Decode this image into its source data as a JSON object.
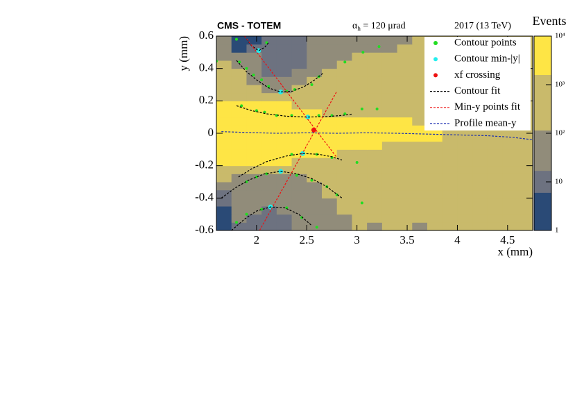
{
  "chart_data": {
    "type": "heatmap",
    "header_left": "CMS - TOTEM",
    "annotation": {
      "symbol": "α",
      "sub": "h",
      "text": " = 120  μrad"
    },
    "header_right": "2017 (13 TeV)",
    "x_label": "x (mm)",
    "y_label": "y (mm)",
    "z_label": "Events",
    "xlim": [
      1.6,
      4.75
    ],
    "ylim": [
      -0.6,
      0.6
    ],
    "xticks": [
      2,
      2.5,
      3,
      3.5,
      4,
      4.5
    ],
    "yticks": [
      -0.6,
      -0.4,
      -0.2,
      0,
      0.2,
      0.4,
      0.6
    ],
    "zlim": [
      1,
      10000
    ],
    "zlog": true,
    "zticks": [
      1,
      10,
      {
        "value": 100,
        "label": "10²"
      },
      {
        "value": 1000,
        "label": "10³"
      },
      {
        "value": 10000,
        "label": "10⁴"
      }
    ],
    "z_levels": [
      1,
      6,
      17,
      115,
      1600,
      10000
    ],
    "level_colors": [
      "#2a4a76",
      "#6d7280",
      "#918c7a",
      "#c9ba6b",
      "#fee545"
    ],
    "x_bins": [
      1.6,
      1.75,
      1.9,
      2.05,
      2.2,
      2.35,
      2.5,
      2.65,
      2.8,
      2.95,
      3.1,
      3.25,
      3.4,
      3.55,
      3.7,
      3.85,
      4.0,
      4.15,
      4.3,
      4.45,
      4.6,
      4.75
    ],
    "y_bins": [
      -0.6,
      -0.55,
      -0.5,
      -0.45,
      -0.4,
      -0.35,
      -0.3,
      -0.25,
      -0.2,
      -0.15,
      -0.1,
      -0.05,
      0,
      0.05,
      0.1,
      0.15,
      0.2,
      0.25,
      0.3,
      0.35,
      0.4,
      0.45,
      0.5,
      0.55,
      0.6
    ],
    "z": [
      [
        3,
        10,
        10,
        10,
        10,
        50,
        50,
        50,
        50,
        500,
        50,
        500,
        500,
        50,
        500,
        500,
        500,
        500,
        500,
        500,
        500
      ],
      [
        3,
        50,
        10,
        10,
        10,
        50,
        50,
        50,
        50,
        500,
        500,
        500,
        500,
        500,
        500,
        500,
        500,
        500,
        500,
        500,
        500
      ],
      [
        3,
        50,
        50,
        10,
        50,
        50,
        50,
        50,
        500,
        500,
        500,
        500,
        500,
        500,
        500,
        500,
        500,
        500,
        500,
        500,
        500
      ],
      [
        10,
        50,
        50,
        50,
        50,
        50,
        50,
        50,
        500,
        500,
        500,
        500,
        500,
        500,
        500,
        500,
        500,
        500,
        500,
        500,
        500
      ],
      [
        10,
        50,
        50,
        50,
        50,
        50,
        50,
        500,
        500,
        500,
        500,
        500,
        500,
        500,
        500,
        500,
        500,
        500,
        500,
        500,
        500
      ],
      [
        50,
        50,
        50,
        50,
        50,
        50,
        50,
        500,
        500,
        500,
        500,
        500,
        500,
        500,
        500,
        500,
        500,
        500,
        500,
        500,
        500
      ],
      [
        500,
        50,
        50,
        50,
        50,
        50,
        500,
        500,
        500,
        500,
        500,
        500,
        500,
        500,
        500,
        500,
        500,
        500,
        500,
        500,
        500
      ],
      [
        500,
        500,
        500,
        500,
        500,
        500,
        500,
        500,
        500,
        500,
        500,
        500,
        500,
        500,
        500,
        500,
        500,
        500,
        500,
        500,
        500
      ],
      [
        3000,
        3000,
        3000,
        3000,
        3000,
        500,
        500,
        500,
        500,
        500,
        500,
        500,
        500,
        500,
        500,
        500,
        500,
        500,
        500,
        500,
        500
      ],
      [
        3000,
        3000,
        3000,
        3000,
        3000,
        3000,
        3000,
        3000,
        500,
        500,
        500,
        500,
        500,
        500,
        500,
        500,
        500,
        500,
        500,
        500,
        500
      ],
      [
        3000,
        3000,
        3000,
        3000,
        3000,
        3000,
        3000,
        3000,
        3000,
        3000,
        3000,
        500,
        500,
        500,
        500,
        500,
        500,
        500,
        500,
        500,
        500
      ],
      [
        3000,
        3000,
        3000,
        3000,
        3000,
        3000,
        3000,
        3000,
        3000,
        3000,
        3000,
        3000,
        3000,
        3000,
        3000,
        500,
        500,
        500,
        500,
        500,
        500
      ],
      [
        3000,
        3000,
        3000,
        3000,
        3000,
        3000,
        3000,
        3000,
        3000,
        3000,
        3000,
        3000,
        3000,
        3000,
        3000,
        500,
        500,
        500,
        500,
        500,
        500
      ],
      [
        3000,
        3000,
        3000,
        3000,
        3000,
        3000,
        3000,
        3000,
        3000,
        3000,
        3000,
        3000,
        3000,
        500,
        500,
        500,
        500,
        500,
        500,
        500,
        500
      ],
      [
        3000,
        3000,
        3000,
        3000,
        3000,
        3000,
        3000,
        500,
        500,
        500,
        500,
        500,
        500,
        500,
        500,
        500,
        500,
        500,
        500,
        500,
        500
      ],
      [
        3000,
        3000,
        3000,
        3000,
        3000,
        500,
        500,
        500,
        500,
        500,
        500,
        500,
        500,
        500,
        500,
        500,
        500,
        500,
        500,
        500,
        500
      ],
      [
        500,
        500,
        500,
        500,
        500,
        500,
        500,
        500,
        500,
        500,
        500,
        500,
        500,
        500,
        500,
        500,
        500,
        500,
        500,
        500,
        500
      ],
      [
        500,
        500,
        500,
        50,
        50,
        500,
        500,
        500,
        500,
        500,
        500,
        500,
        500,
        500,
        500,
        500,
        500,
        500,
        500,
        500,
        500
      ],
      [
        500,
        500,
        50,
        50,
        50,
        50,
        500,
        500,
        500,
        500,
        500,
        500,
        500,
        500,
        500,
        500,
        500,
        500,
        500,
        500,
        500
      ],
      [
        500,
        500,
        50,
        10,
        10,
        50,
        50,
        500,
        500,
        500,
        500,
        500,
        500,
        500,
        500,
        500,
        500,
        500,
        500,
        500,
        500
      ],
      [
        500,
        50,
        50,
        10,
        10,
        10,
        50,
        50,
        500,
        500,
        500,
        500,
        500,
        500,
        500,
        500,
        500,
        500,
        500,
        500,
        500
      ],
      [
        50,
        50,
        50,
        10,
        10,
        10,
        50,
        50,
        50,
        500,
        500,
        500,
        500,
        500,
        500,
        500,
        500,
        500,
        500,
        500,
        500
      ],
      [
        50,
        3,
        10,
        10,
        10,
        10,
        50,
        50,
        50,
        50,
        50,
        50,
        500,
        500,
        500,
        500,
        500,
        500,
        500,
        500,
        500
      ],
      [
        50,
        3,
        3,
        10,
        10,
        10,
        50,
        50,
        50,
        50,
        50,
        50,
        50,
        500,
        500,
        500,
        500,
        500,
        500,
        500,
        500
      ]
    ],
    "legend": "upper right",
    "series": [
      {
        "name": "Contour points",
        "style": "points",
        "color": "#22dd22",
        "size": 2,
        "x": [
          1.6,
          1.83,
          1.9,
          1.97,
          2.05,
          2.12,
          2.3,
          2.38,
          2.55,
          2.62,
          1.8,
          2.1,
          2.88,
          3.06,
          3.22,
          1.85,
          2.0,
          2.08,
          2.2,
          2.35,
          2.62,
          2.75,
          2.88,
          3.05,
          3.2,
          2.35,
          2.6,
          2.75,
          3.0,
          1.9,
          2.0,
          2.1,
          2.4,
          2.55,
          2.7,
          2.8,
          1.8,
          1.9,
          2.05,
          2.3,
          2.45,
          2.6,
          3.05
        ],
        "values": [
          0.445,
          0.44,
          0.4,
          0.36,
          0.33,
          0.29,
          0.26,
          0.27,
          0.3,
          0.35,
          0.58,
          0.56,
          0.44,
          0.5,
          0.535,
          0.17,
          0.14,
          0.13,
          0.11,
          0.11,
          0.11,
          0.11,
          0.12,
          0.15,
          0.15,
          -0.13,
          -0.13,
          -0.15,
          -0.18,
          -0.3,
          -0.27,
          -0.25,
          -0.26,
          -0.29,
          -0.33,
          -0.38,
          -0.55,
          -0.5,
          -0.47,
          -0.46,
          -0.52,
          -0.58,
          -0.43
        ]
      },
      {
        "name": "Contour min-|y|",
        "style": "points",
        "color": "#22eeee",
        "size": 3.5,
        "x": [
          2.02,
          2.24,
          2.51,
          2.46,
          2.24,
          2.14
        ],
        "values": [
          0.51,
          0.255,
          0.1,
          -0.125,
          -0.235,
          -0.455
        ]
      },
      {
        "name": "xf crossing",
        "style": "points",
        "color": "#ee1111",
        "size": 3.5,
        "x": [
          2.57
        ],
        "values": [
          0.02
        ]
      },
      {
        "name": "Contour fit",
        "style": "dashed",
        "color": "#000000",
        "x": [
          1.88,
          1.95,
          2.02,
          2.08,
          2.12,
          null,
          1.8,
          1.9,
          2.0,
          2.12,
          2.24,
          2.36,
          2.48,
          2.58,
          2.66,
          null,
          1.8,
          1.95,
          2.1,
          2.3,
          2.51,
          2.7,
          2.85,
          2.95,
          null,
          1.82,
          1.95,
          2.1,
          2.3,
          2.46,
          2.62,
          2.75,
          2.85,
          null,
          1.65,
          1.78,
          1.92,
          2.08,
          2.24,
          2.4,
          2.55,
          2.7,
          2.85,
          null,
          1.75,
          1.88,
          2.0,
          2.14,
          2.28,
          2.42,
          2.55
        ],
        "values": [
          0.6,
          0.54,
          0.51,
          0.53,
          0.56,
          null,
          0.45,
          0.38,
          0.33,
          0.28,
          0.255,
          0.26,
          0.29,
          0.33,
          0.37,
          null,
          0.17,
          0.14,
          0.12,
          0.105,
          0.1,
          0.103,
          0.11,
          0.118,
          null,
          -0.27,
          -0.22,
          -0.175,
          -0.14,
          -0.125,
          -0.13,
          -0.145,
          -0.165,
          null,
          -0.4,
          -0.34,
          -0.29,
          -0.25,
          -0.235,
          -0.25,
          -0.28,
          -0.33,
          -0.4,
          null,
          -0.6,
          -0.53,
          -0.48,
          -0.455,
          -0.46,
          -0.5,
          -0.57
        ]
      },
      {
        "name": "Min-y points fit",
        "style": "dashed",
        "color": "#ee1111",
        "x": [
          1.88,
          2.8,
          null,
          2.03,
          2.8
        ],
        "values": [
          0.6,
          -0.15,
          null,
          -0.6,
          0.26
        ]
      },
      {
        "name": "Profile mean-y",
        "style": "dashed",
        "color": "#1a2fb0",
        "x": [
          1.65,
          1.9,
          2.2,
          2.5,
          2.8,
          3.1,
          3.4,
          3.7,
          4.0,
          4.3,
          4.55,
          4.75
        ],
        "values": [
          0.01,
          0.005,
          0.0,
          0.003,
          0.0,
          0.003,
          0.0,
          -0.005,
          -0.01,
          -0.015,
          -0.025,
          -0.04
        ]
      }
    ]
  }
}
